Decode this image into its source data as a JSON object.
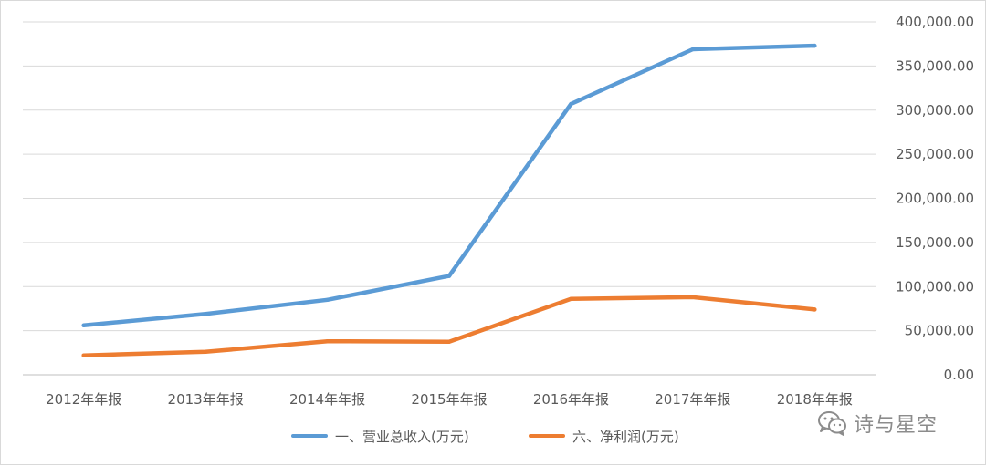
{
  "chart_data": {
    "type": "line",
    "categories": [
      "2012年年报",
      "2013年年报",
      "2014年年报",
      "2015年年报",
      "2016年年报",
      "2017年年报",
      "2018年年报"
    ],
    "series": [
      {
        "name": "一、营业总收入(万元)",
        "color": "#5b9bd5",
        "values": [
          56000,
          69000,
          85000,
          112000,
          307000,
          369000,
          373000
        ]
      },
      {
        "name": "六、净利润(万元)",
        "color": "#ed7d31",
        "values": [
          22000,
          26000,
          38000,
          37500,
          86000,
          88000,
          74000
        ]
      }
    ],
    "y_ticks": [
      "0.00",
      "50,000.00",
      "100,000.00",
      "150,000.00",
      "200,000.00",
      "250,000.00",
      "300,000.00",
      "350,000.00",
      "400,000.00"
    ],
    "ylim": [
      0,
      400000
    ],
    "y_axis_side": "right",
    "grid": true,
    "legend": "bottom",
    "title": "",
    "xlabel": "",
    "ylabel": ""
  },
  "watermark": {
    "text": "诗与星空",
    "icon": "wechat-icon"
  }
}
